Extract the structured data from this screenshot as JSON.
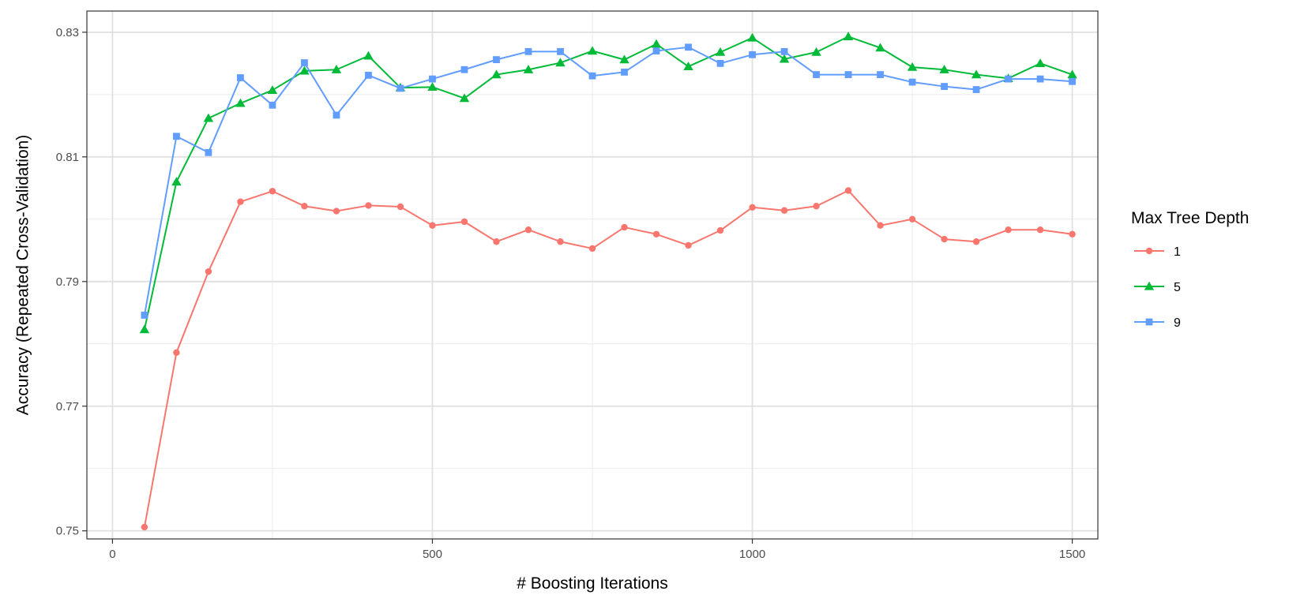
{
  "chart_data": {
    "type": "line",
    "xlabel": "# Boosting Iterations",
    "ylabel": "Accuracy (Repeated Cross-Validation)",
    "xlim": [
      -40,
      1540
    ],
    "ylim": [
      0.7487,
      0.8334
    ],
    "x_ticks": [
      0,
      500,
      1000,
      1500
    ],
    "x_tick_labels": [
      "0",
      "500",
      "1000",
      "1500"
    ],
    "y_ticks": [
      0.75,
      0.77,
      0.79,
      0.81,
      0.83
    ],
    "y_tick_labels": [
      "0.75",
      "0.77",
      "0.79",
      "0.81",
      "0.83"
    ],
    "grid": true,
    "legend": {
      "title": "Max Tree Depth",
      "position": "right"
    },
    "x": [
      50,
      100,
      150,
      200,
      250,
      300,
      350,
      400,
      450,
      500,
      550,
      600,
      650,
      700,
      750,
      800,
      850,
      900,
      950,
      1000,
      1050,
      1100,
      1150,
      1200,
      1250,
      1300,
      1350,
      1400,
      1450,
      1500
    ],
    "series": [
      {
        "name": "1",
        "color": "#F8766D",
        "marker": "circle",
        "values": [
          0.7506,
          0.7786,
          0.7916,
          0.8028,
          0.8045,
          0.8021,
          0.8013,
          0.8022,
          0.802,
          0.799,
          0.7996,
          0.7964,
          0.7983,
          0.7964,
          0.7953,
          0.7987,
          0.7976,
          0.7958,
          0.7982,
          0.8019,
          0.8014,
          0.8021,
          0.8046,
          0.799,
          0.8,
          0.7968,
          0.7964,
          0.7983,
          0.7983,
          0.7976
        ]
      },
      {
        "name": "5",
        "color": "#00BA38",
        "marker": "triangle",
        "values": [
          0.7823,
          0.806,
          0.8162,
          0.8186,
          0.8207,
          0.8238,
          0.824,
          0.8262,
          0.8211,
          0.8212,
          0.8194,
          0.8232,
          0.824,
          0.8251,
          0.827,
          0.8256,
          0.8281,
          0.8245,
          0.8268,
          0.8291,
          0.8257,
          0.8268,
          0.8293,
          0.8275,
          0.8244,
          0.824,
          0.8232,
          0.8226,
          0.825,
          0.8232
        ]
      },
      {
        "name": "9",
        "color": "#619CFF",
        "marker": "square",
        "values": [
          0.7846,
          0.8133,
          0.8107,
          0.8227,
          0.8183,
          0.8251,
          0.8167,
          0.8231,
          0.821,
          0.8225,
          0.824,
          0.8256,
          0.8269,
          0.8269,
          0.823,
          0.8236,
          0.827,
          0.8276,
          0.825,
          0.8264,
          0.8269,
          0.8232,
          0.8232,
          0.8232,
          0.822,
          0.8213,
          0.8208,
          0.8225,
          0.8225,
          0.8221
        ]
      }
    ]
  }
}
